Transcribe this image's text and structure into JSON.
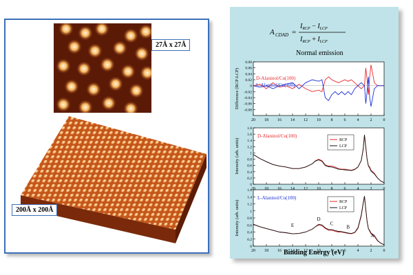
{
  "left": {
    "small_scan_label": "27Å x 27Å",
    "large_scan_label": "200Å x 200Å"
  },
  "right": {
    "normal_emission": "Normal emission",
    "xlabel": "Binding Energy (eV)"
  },
  "colors": {
    "rcp": "#e8262a",
    "lcp": "#111111",
    "lalaninol_blue": "#1a2fd6",
    "panel_bg": "#bfe3e8",
    "stm_orange": "#d4621e"
  },
  "chart_data": [
    {
      "type": "line",
      "ylabel": "Difference (RCP-LCP)",
      "xlim": [
        20,
        0
      ],
      "ylim": [
        -0.1,
        0.08
      ],
      "yticks": [
        0.08,
        0.06,
        0.04,
        0.02,
        0,
        -0.02,
        -0.04,
        -0.06,
        -0.08
      ],
      "xticks": [
        20,
        18,
        16,
        14,
        12,
        10,
        8,
        6,
        4,
        2,
        0
      ],
      "series": [
        {
          "name": "D-Alaninol/Cu(100)",
          "color": "#e8262a",
          "x": [
            20,
            19,
            18,
            17,
            16,
            15,
            14,
            13,
            12,
            11,
            10,
            9.5,
            9,
            8.5,
            8,
            7.5,
            7,
            6.5,
            6,
            5.5,
            5,
            4.5,
            4,
            3.5,
            3,
            2.8,
            2.6,
            2.4,
            2.2,
            2,
            1.5,
            1,
            0.5,
            0
          ],
          "y": [
            0.0,
            0.005,
            -0.01,
            0.01,
            -0.005,
            0.0,
            -0.01,
            0.005,
            -0.01,
            -0.02,
            -0.015,
            -0.02,
            0.02,
            0.03,
            0.02,
            0.015,
            0.01,
            0.015,
            0.02,
            0.015,
            0.02,
            0.01,
            0.0,
            -0.01,
            0.0,
            0.06,
            0.02,
            -0.03,
            0.03,
            0.07,
            0.01,
            0.0,
            0.0,
            0.0
          ]
        },
        {
          "name": "L-Alaninol/Cu(100)",
          "color": "#1a2fd6",
          "x": [
            20,
            19,
            18,
            17,
            16,
            15,
            14,
            13,
            12,
            11,
            10,
            9.5,
            9,
            8.5,
            8,
            7.5,
            7,
            6.5,
            6,
            5.5,
            5,
            4.5,
            4,
            3.5,
            3,
            2.8,
            2.6,
            2.4,
            2.2,
            2,
            1.5,
            1,
            0.5,
            0
          ],
          "y": [
            0.0,
            -0.005,
            0.0,
            -0.01,
            0.0,
            0.005,
            0.01,
            -0.01,
            0.01,
            0.02,
            0.015,
            0.02,
            -0.04,
            -0.05,
            -0.03,
            -0.02,
            -0.03,
            -0.02,
            -0.03,
            -0.02,
            -0.03,
            -0.01,
            0.0,
            0.01,
            0.0,
            -0.06,
            -0.02,
            0.03,
            -0.04,
            -0.07,
            -0.01,
            0.0,
            0.0,
            0.0
          ]
        }
      ]
    },
    {
      "type": "line",
      "title": "D-Alaninol/Cu(100)",
      "ylabel": "Intensity (arb. units)",
      "xlim": [
        20,
        0
      ],
      "ylim": [
        0,
        1.8
      ],
      "yticks": [
        1.8,
        1.6,
        1.4,
        1.2,
        1.0,
        0.8,
        0.6,
        0.4,
        0.2,
        0
      ],
      "xticks": [
        20,
        18,
        16,
        14,
        12,
        10,
        8,
        6,
        4,
        2,
        0
      ],
      "series": [
        {
          "name": "RCP",
          "color": "#e8262a",
          "x": [
            20,
            19,
            18,
            17,
            16,
            15,
            14,
            13,
            12,
            11,
            10.5,
            10,
            9.5,
            9,
            8.5,
            8,
            7.5,
            7,
            6.5,
            6,
            5.5,
            5,
            4.5,
            4,
            3.5,
            3.2,
            3,
            2.8,
            2.6,
            2.4,
            2.2,
            2,
            1.5,
            1,
            0.5,
            0
          ],
          "y": [
            0.95,
            0.82,
            0.72,
            0.63,
            0.58,
            0.55,
            0.5,
            0.5,
            0.55,
            0.65,
            0.75,
            0.8,
            0.75,
            0.62,
            0.58,
            0.58,
            0.55,
            0.5,
            0.48,
            0.48,
            0.46,
            0.45,
            0.48,
            0.55,
            0.75,
            1.1,
            1.55,
            1.2,
            0.8,
            0.6,
            0.55,
            0.45,
            0.35,
            0.2,
            0.1,
            0.05
          ]
        },
        {
          "name": "LCP",
          "color": "#111111",
          "x": [
            20,
            19,
            18,
            17,
            16,
            15,
            14,
            13,
            12,
            11,
            10.5,
            10,
            9.5,
            9,
            8.5,
            8,
            7.5,
            7,
            6.5,
            6,
            5.5,
            5,
            4.5,
            4,
            3.5,
            3.2,
            3,
            2.8,
            2.6,
            2.4,
            2.2,
            2,
            1.5,
            1,
            0.5,
            0
          ],
          "y": [
            0.95,
            0.82,
            0.72,
            0.63,
            0.58,
            0.55,
            0.5,
            0.5,
            0.55,
            0.65,
            0.74,
            0.78,
            0.73,
            0.6,
            0.56,
            0.55,
            0.52,
            0.48,
            0.47,
            0.46,
            0.45,
            0.44,
            0.47,
            0.55,
            0.76,
            1.12,
            1.58,
            1.18,
            0.8,
            0.58,
            0.52,
            0.42,
            0.33,
            0.2,
            0.1,
            0.05
          ]
        }
      ]
    },
    {
      "type": "line",
      "title": "L-Alaninol/Cu(100)",
      "ylabel": "Intensity (arb. units)",
      "xlim": [
        20,
        0
      ],
      "ylim": [
        0,
        1.6
      ],
      "yticks": [
        1.6,
        1.4,
        1.2,
        1.0,
        0.8,
        0.6,
        0.4,
        0.2,
        0
      ],
      "xticks": [
        20,
        18,
        16,
        14,
        12,
        10,
        8,
        6,
        4,
        2,
        0
      ],
      "annotations": [
        {
          "text": "E",
          "x": 14,
          "y": 0.55
        },
        {
          "text": "D",
          "x": 10,
          "y": 0.72
        },
        {
          "text": "C",
          "x": 8,
          "y": 0.6
        },
        {
          "text": "B",
          "x": 5.5,
          "y": 0.5
        },
        {
          "text": "A",
          "x": 1.8,
          "y": 0.25
        }
      ],
      "series": [
        {
          "name": "RCP",
          "color": "#e8262a",
          "x": [
            20,
            19,
            18,
            17,
            16,
            15,
            14,
            13,
            12,
            11,
            10.5,
            10,
            9.5,
            9,
            8.5,
            8,
            7.5,
            7,
            6.5,
            6,
            5.5,
            5,
            4.5,
            4,
            3.5,
            3.2,
            3,
            2.8,
            2.6,
            2.4,
            2.2,
            2,
            1.5,
            1,
            0.5,
            0
          ],
          "y": [
            0.62,
            0.55,
            0.5,
            0.45,
            0.4,
            0.38,
            0.35,
            0.36,
            0.4,
            0.48,
            0.55,
            0.6,
            0.58,
            0.5,
            0.45,
            0.45,
            0.42,
            0.4,
            0.4,
            0.38,
            0.36,
            0.35,
            0.38,
            0.5,
            0.85,
            1.2,
            1.4,
            1.05,
            0.7,
            0.5,
            0.42,
            0.35,
            0.28,
            0.15,
            0.08,
            0.04
          ]
        },
        {
          "name": "LCP",
          "color": "#111111",
          "x": [
            20,
            19,
            18,
            17,
            16,
            15,
            14,
            13,
            12,
            11,
            10.5,
            10,
            9.5,
            9,
            8.5,
            8,
            7.5,
            7,
            6.5,
            6,
            5.5,
            5,
            4.5,
            4,
            3.5,
            3.2,
            3,
            2.8,
            2.6,
            2.4,
            2.2,
            2,
            1.5,
            1,
            0.5,
            0
          ],
          "y": [
            0.62,
            0.55,
            0.5,
            0.45,
            0.4,
            0.38,
            0.35,
            0.36,
            0.4,
            0.48,
            0.55,
            0.62,
            0.6,
            0.52,
            0.47,
            0.47,
            0.44,
            0.42,
            0.41,
            0.39,
            0.37,
            0.36,
            0.39,
            0.52,
            0.88,
            1.22,
            1.42,
            1.05,
            0.7,
            0.5,
            0.44,
            0.37,
            0.3,
            0.16,
            0.08,
            0.04
          ]
        }
      ]
    }
  ]
}
